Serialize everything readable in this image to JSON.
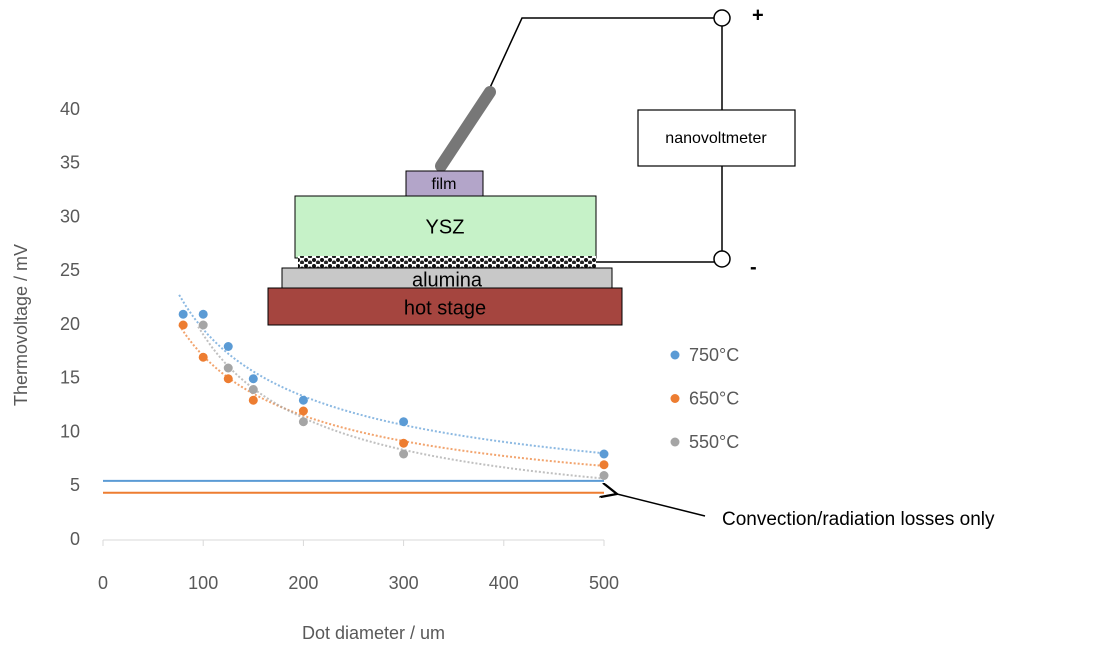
{
  "chart_data": {
    "type": "scatter",
    "x_label": "Dot diameter / um",
    "y_label": "Thermovoltage / mV",
    "xlim": [
      0,
      500
    ],
    "xticks": [
      0,
      100,
      200,
      300,
      400,
      500
    ],
    "ylim": [
      0,
      40
    ],
    "yticks": [
      0,
      5,
      10,
      15,
      20,
      25,
      30,
      35,
      40
    ],
    "trendline": "power",
    "series": [
      {
        "name": "750°C",
        "color": "#5b9bd5",
        "x": [
          80,
          100,
          125,
          150,
          200,
          300,
          500
        ],
        "values": [
          21,
          21,
          18,
          15,
          13,
          11,
          8
        ]
      },
      {
        "name": "650°C",
        "color": "#ed7d31",
        "x": [
          80,
          100,
          125,
          150,
          200,
          300,
          500
        ],
        "values": [
          20,
          17,
          15,
          13,
          12,
          9,
          7
        ]
      },
      {
        "name": "550°C",
        "color": "#a5a5a5",
        "x": [
          100,
          125,
          150,
          200,
          300,
          500
        ],
        "values": [
          20,
          16,
          14,
          11,
          8,
          6
        ]
      }
    ],
    "reference_lines": [
      {
        "value": 5.5,
        "color": "#5b9bd5"
      },
      {
        "value": 4.4,
        "color": "#ed7d31"
      }
    ],
    "annotation": "Convection/radiation losses only"
  },
  "diagram": {
    "film": "film",
    "ysz": "YSZ",
    "alumina": "alumina",
    "hot_stage": "hot stage",
    "meter": "nanovoltmeter",
    "plus": "+",
    "minus": "-"
  }
}
